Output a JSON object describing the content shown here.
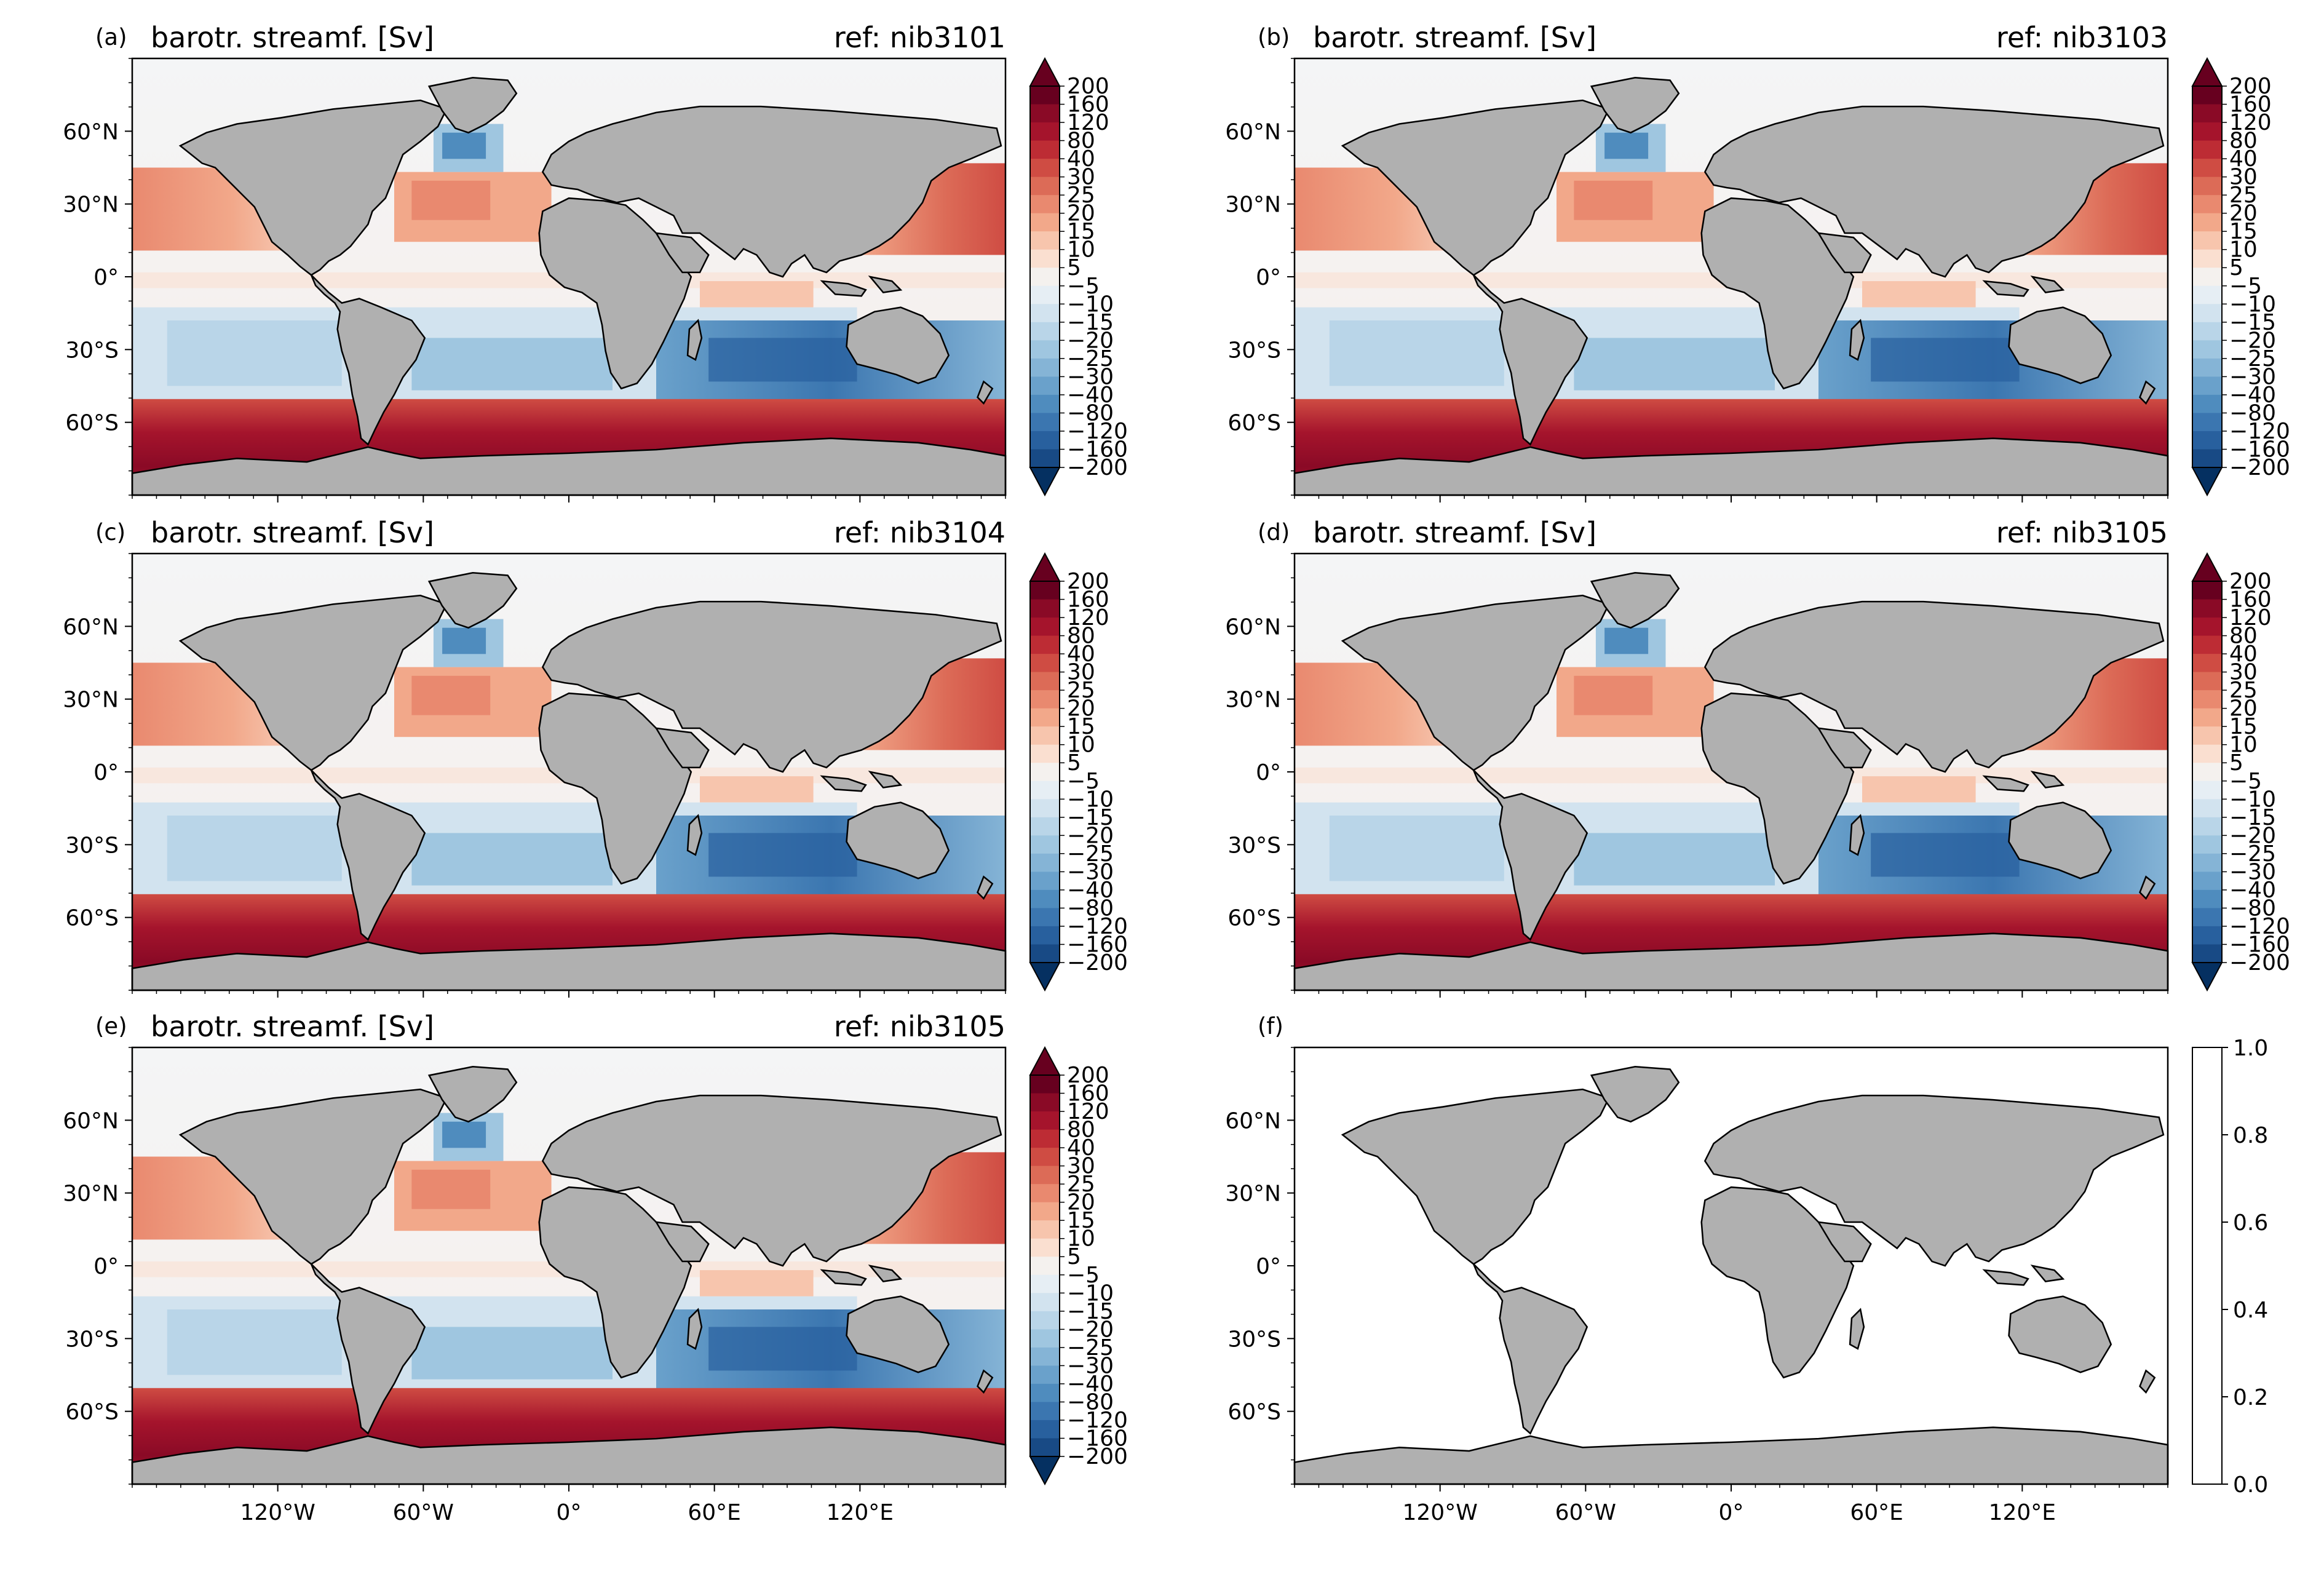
{
  "figure": {
    "panels": [
      {
        "label": "(a)",
        "title": "barotr. streamf. [Sv]",
        "ref": "ref: nib3101",
        "empty": false
      },
      {
        "label": "(b)",
        "title": "barotr. streamf. [Sv]",
        "ref": "ref: nib3103",
        "empty": false
      },
      {
        "label": "(c)",
        "title": "barotr. streamf. [Sv]",
        "ref": "ref: nib3104",
        "empty": false
      },
      {
        "label": "(d)",
        "title": "barotr. streamf. [Sv]",
        "ref": "ref: nib3105",
        "empty": false
      },
      {
        "label": "(e)",
        "title": "barotr. streamf. [Sv]",
        "ref": "ref: nib3105",
        "empty": false
      },
      {
        "label": "(f)",
        "title": "",
        "ref": "",
        "empty": true
      }
    ],
    "lat_ticks": [
      "60°N",
      "30°N",
      "0°",
      "30°S",
      "60°S"
    ],
    "lat_values": [
      60,
      30,
      0,
      -30,
      -60
    ],
    "lon_ticks": [
      "120°W",
      "60°W",
      "0°",
      "60°E",
      "120°E"
    ],
    "lon_values": [
      -120,
      -60,
      0,
      60,
      120
    ],
    "colorbar_levels": [
      "200",
      "160",
      "120",
      "80",
      "40",
      "30",
      "25",
      "20",
      "15",
      "10",
      "5",
      "−5",
      "−10",
      "−15",
      "−20",
      "−25",
      "−30",
      "−40",
      "−80",
      "−120",
      "−160",
      "−200"
    ],
    "colorbar_colors": [
      "#67001f",
      "#8a0a26",
      "#a5142c",
      "#bd2c34",
      "#cf4c43",
      "#dc6b57",
      "#e9896f",
      "#f2a88a",
      "#f7c5ad",
      "#fadfd0",
      "#f4f1ee",
      "#e6eef4",
      "#d2e3ef",
      "#b9d5e8",
      "#9fc6e0",
      "#85b4d6",
      "#6aa1cb",
      "#4f8cbe",
      "#3b76b0",
      "#28609e",
      "#184a85",
      "#053061"
    ],
    "empty_colorbar_ticks": [
      "1.0",
      "0.8",
      "0.6",
      "0.4",
      "0.2",
      "0.0"
    ],
    "empty_colorbar_values": [
      1.0,
      0.8,
      0.6,
      0.4,
      0.2,
      0.0
    ],
    "land_color": "#b0b0b0",
    "colormap": "RdBu_r"
  }
}
